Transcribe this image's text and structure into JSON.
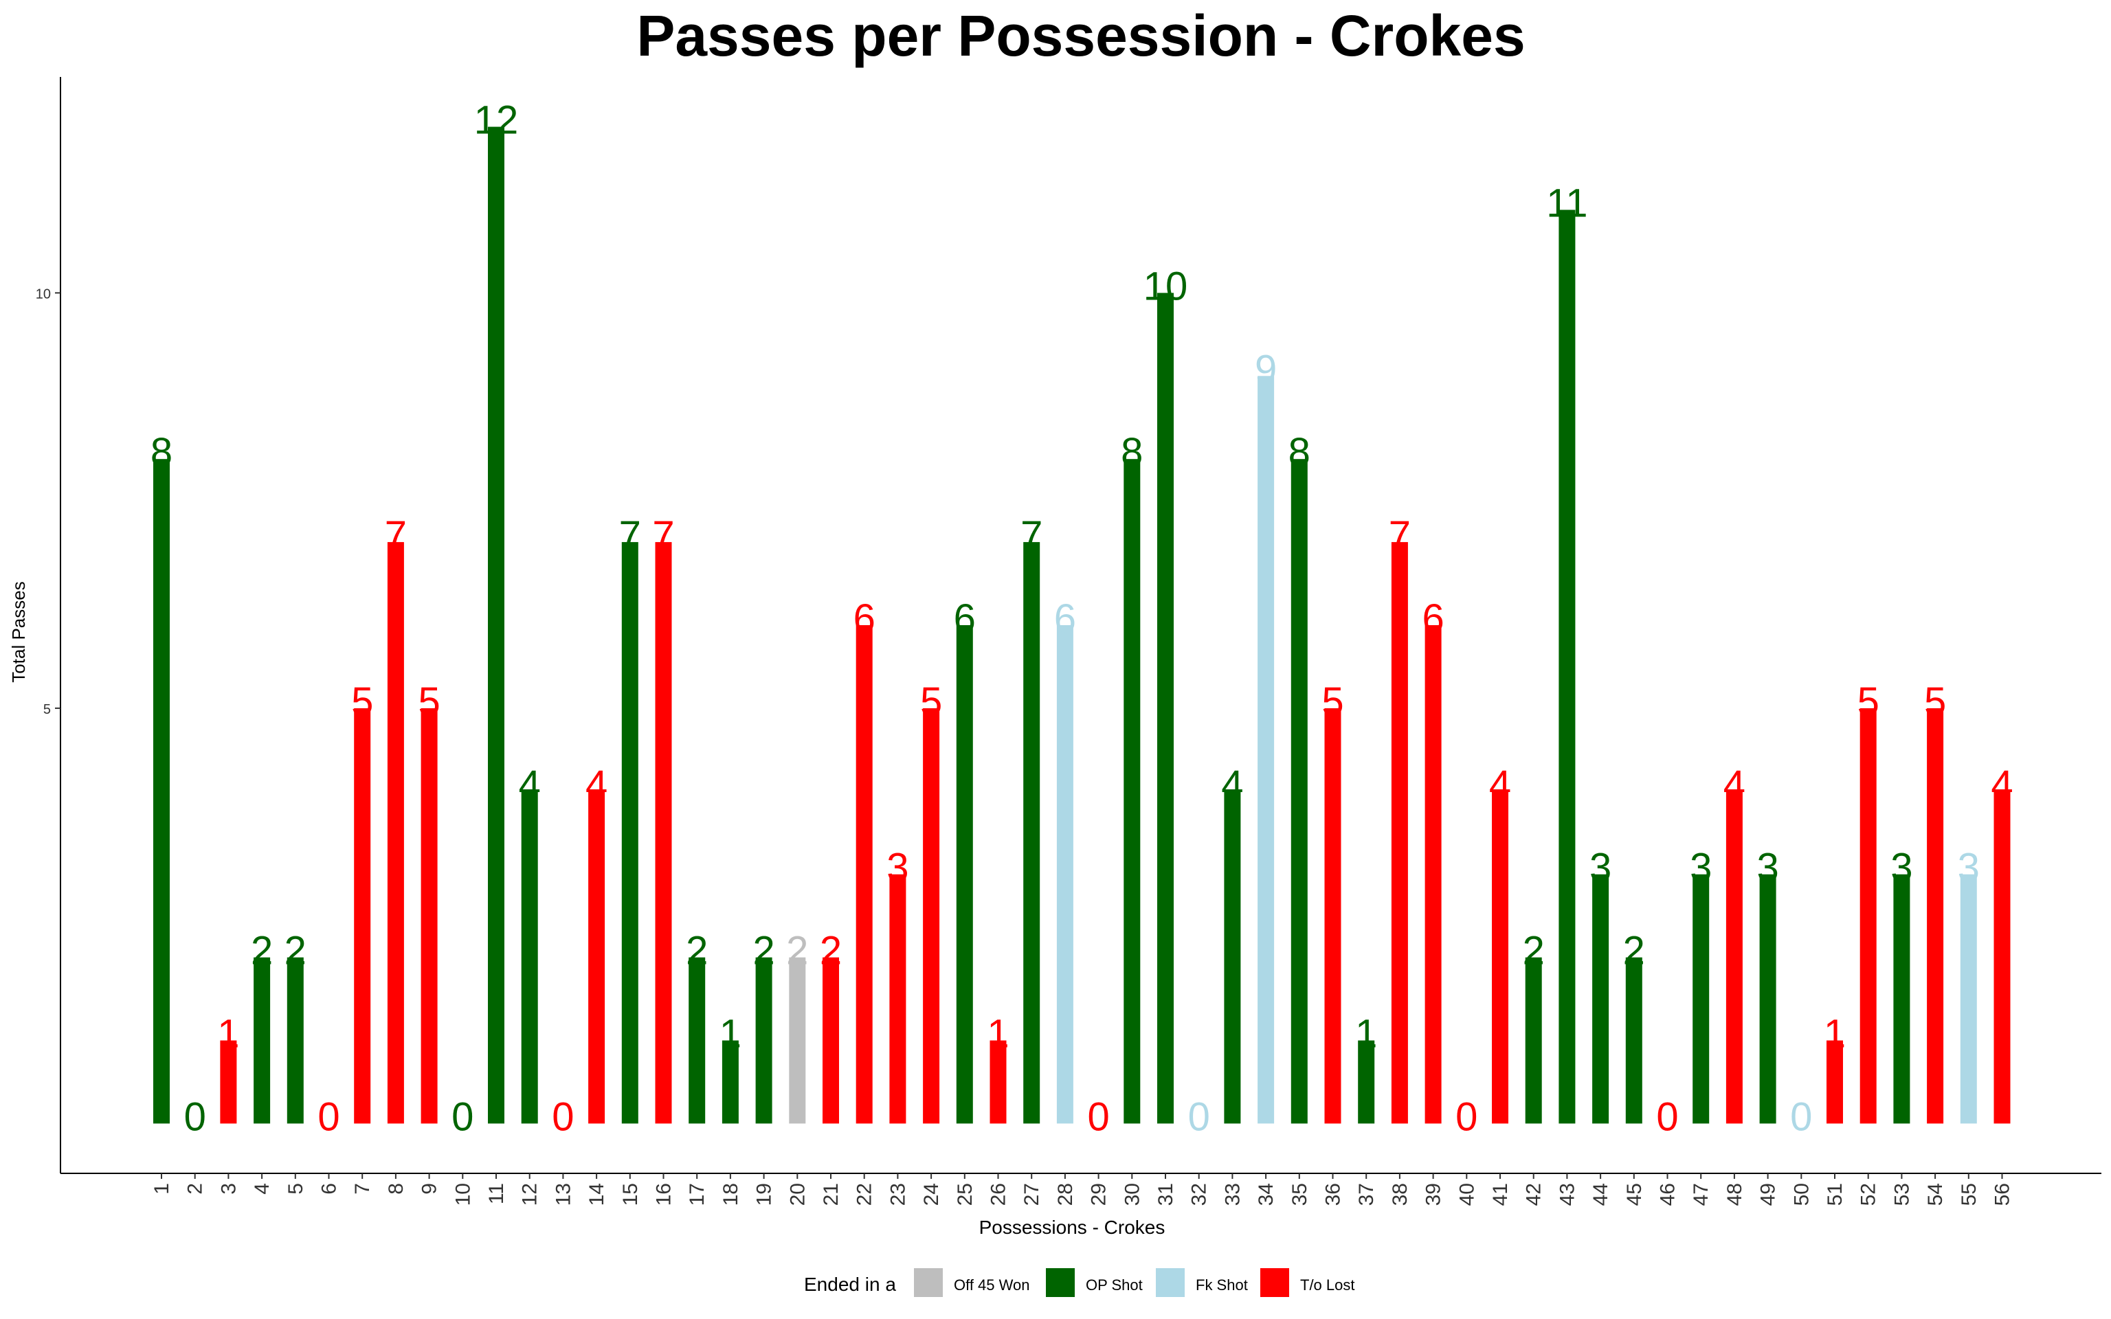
{
  "chart_data": {
    "type": "bar",
    "title": "Passes per Possession - Crokes",
    "xlabel": "Possessions - Crokes",
    "ylabel": "Total Passes",
    "ylim": [
      -0.6,
      12.6
    ],
    "yticks": [
      5,
      10
    ],
    "grid": false,
    "legend_position": "bottom",
    "legend_title": "Ended in a",
    "legend": [
      {
        "name": "Off 45 Won",
        "color": "#BEBEBE"
      },
      {
        "name": "OP Shot",
        "color": "#006400"
      },
      {
        "name": "Fk Shot",
        "color": "#ADD8E6"
      },
      {
        "name": "T/o Lost",
        "color": "#FF0000"
      }
    ],
    "categories": [
      "1",
      "2",
      "3",
      "4",
      "5",
      "6",
      "7",
      "8",
      "9",
      "10",
      "11",
      "12",
      "13",
      "14",
      "15",
      "16",
      "17",
      "18",
      "19",
      "20",
      "21",
      "22",
      "23",
      "24",
      "25",
      "26",
      "27",
      "28",
      "29",
      "30",
      "31",
      "32",
      "33",
      "34",
      "35",
      "36",
      "37",
      "38",
      "39",
      "40",
      "41",
      "42",
      "43",
      "44",
      "45",
      "46",
      "47",
      "48",
      "49",
      "50",
      "51",
      "52",
      "53",
      "54",
      "55",
      "56"
    ],
    "values": [
      8,
      0,
      1,
      2,
      2,
      0,
      5,
      7,
      5,
      0,
      12,
      4,
      0,
      4,
      7,
      7,
      2,
      1,
      2,
      2,
      2,
      6,
      3,
      5,
      6,
      1,
      7,
      6,
      0,
      8,
      10,
      0,
      4,
      9,
      8,
      5,
      1,
      7,
      6,
      0,
      4,
      2,
      11,
      3,
      2,
      0,
      3,
      4,
      3,
      0,
      1,
      5,
      3,
      5,
      3,
      4
    ],
    "outcomes": [
      "OP Shot",
      "OP Shot",
      "T/o Lost",
      "OP Shot",
      "OP Shot",
      "T/o Lost",
      "T/o Lost",
      "T/o Lost",
      "T/o Lost",
      "OP Shot",
      "OP Shot",
      "OP Shot",
      "T/o Lost",
      "T/o Lost",
      "OP Shot",
      "T/o Lost",
      "OP Shot",
      "OP Shot",
      "OP Shot",
      "Off 45 Won",
      "T/o Lost",
      "T/o Lost",
      "T/o Lost",
      "T/o Lost",
      "OP Shot",
      "T/o Lost",
      "OP Shot",
      "Fk Shot",
      "T/o Lost",
      "OP Shot",
      "OP Shot",
      "Fk Shot",
      "OP Shot",
      "Fk Shot",
      "OP Shot",
      "T/o Lost",
      "OP Shot",
      "T/o Lost",
      "T/o Lost",
      "T/o Lost",
      "T/o Lost",
      "OP Shot",
      "OP Shot",
      "OP Shot",
      "OP Shot",
      "T/o Lost",
      "OP Shot",
      "T/o Lost",
      "OP Shot",
      "Fk Shot",
      "T/o Lost",
      "T/o Lost",
      "OP Shot",
      "T/o Lost",
      "Fk Shot",
      "T/o Lost"
    ]
  }
}
